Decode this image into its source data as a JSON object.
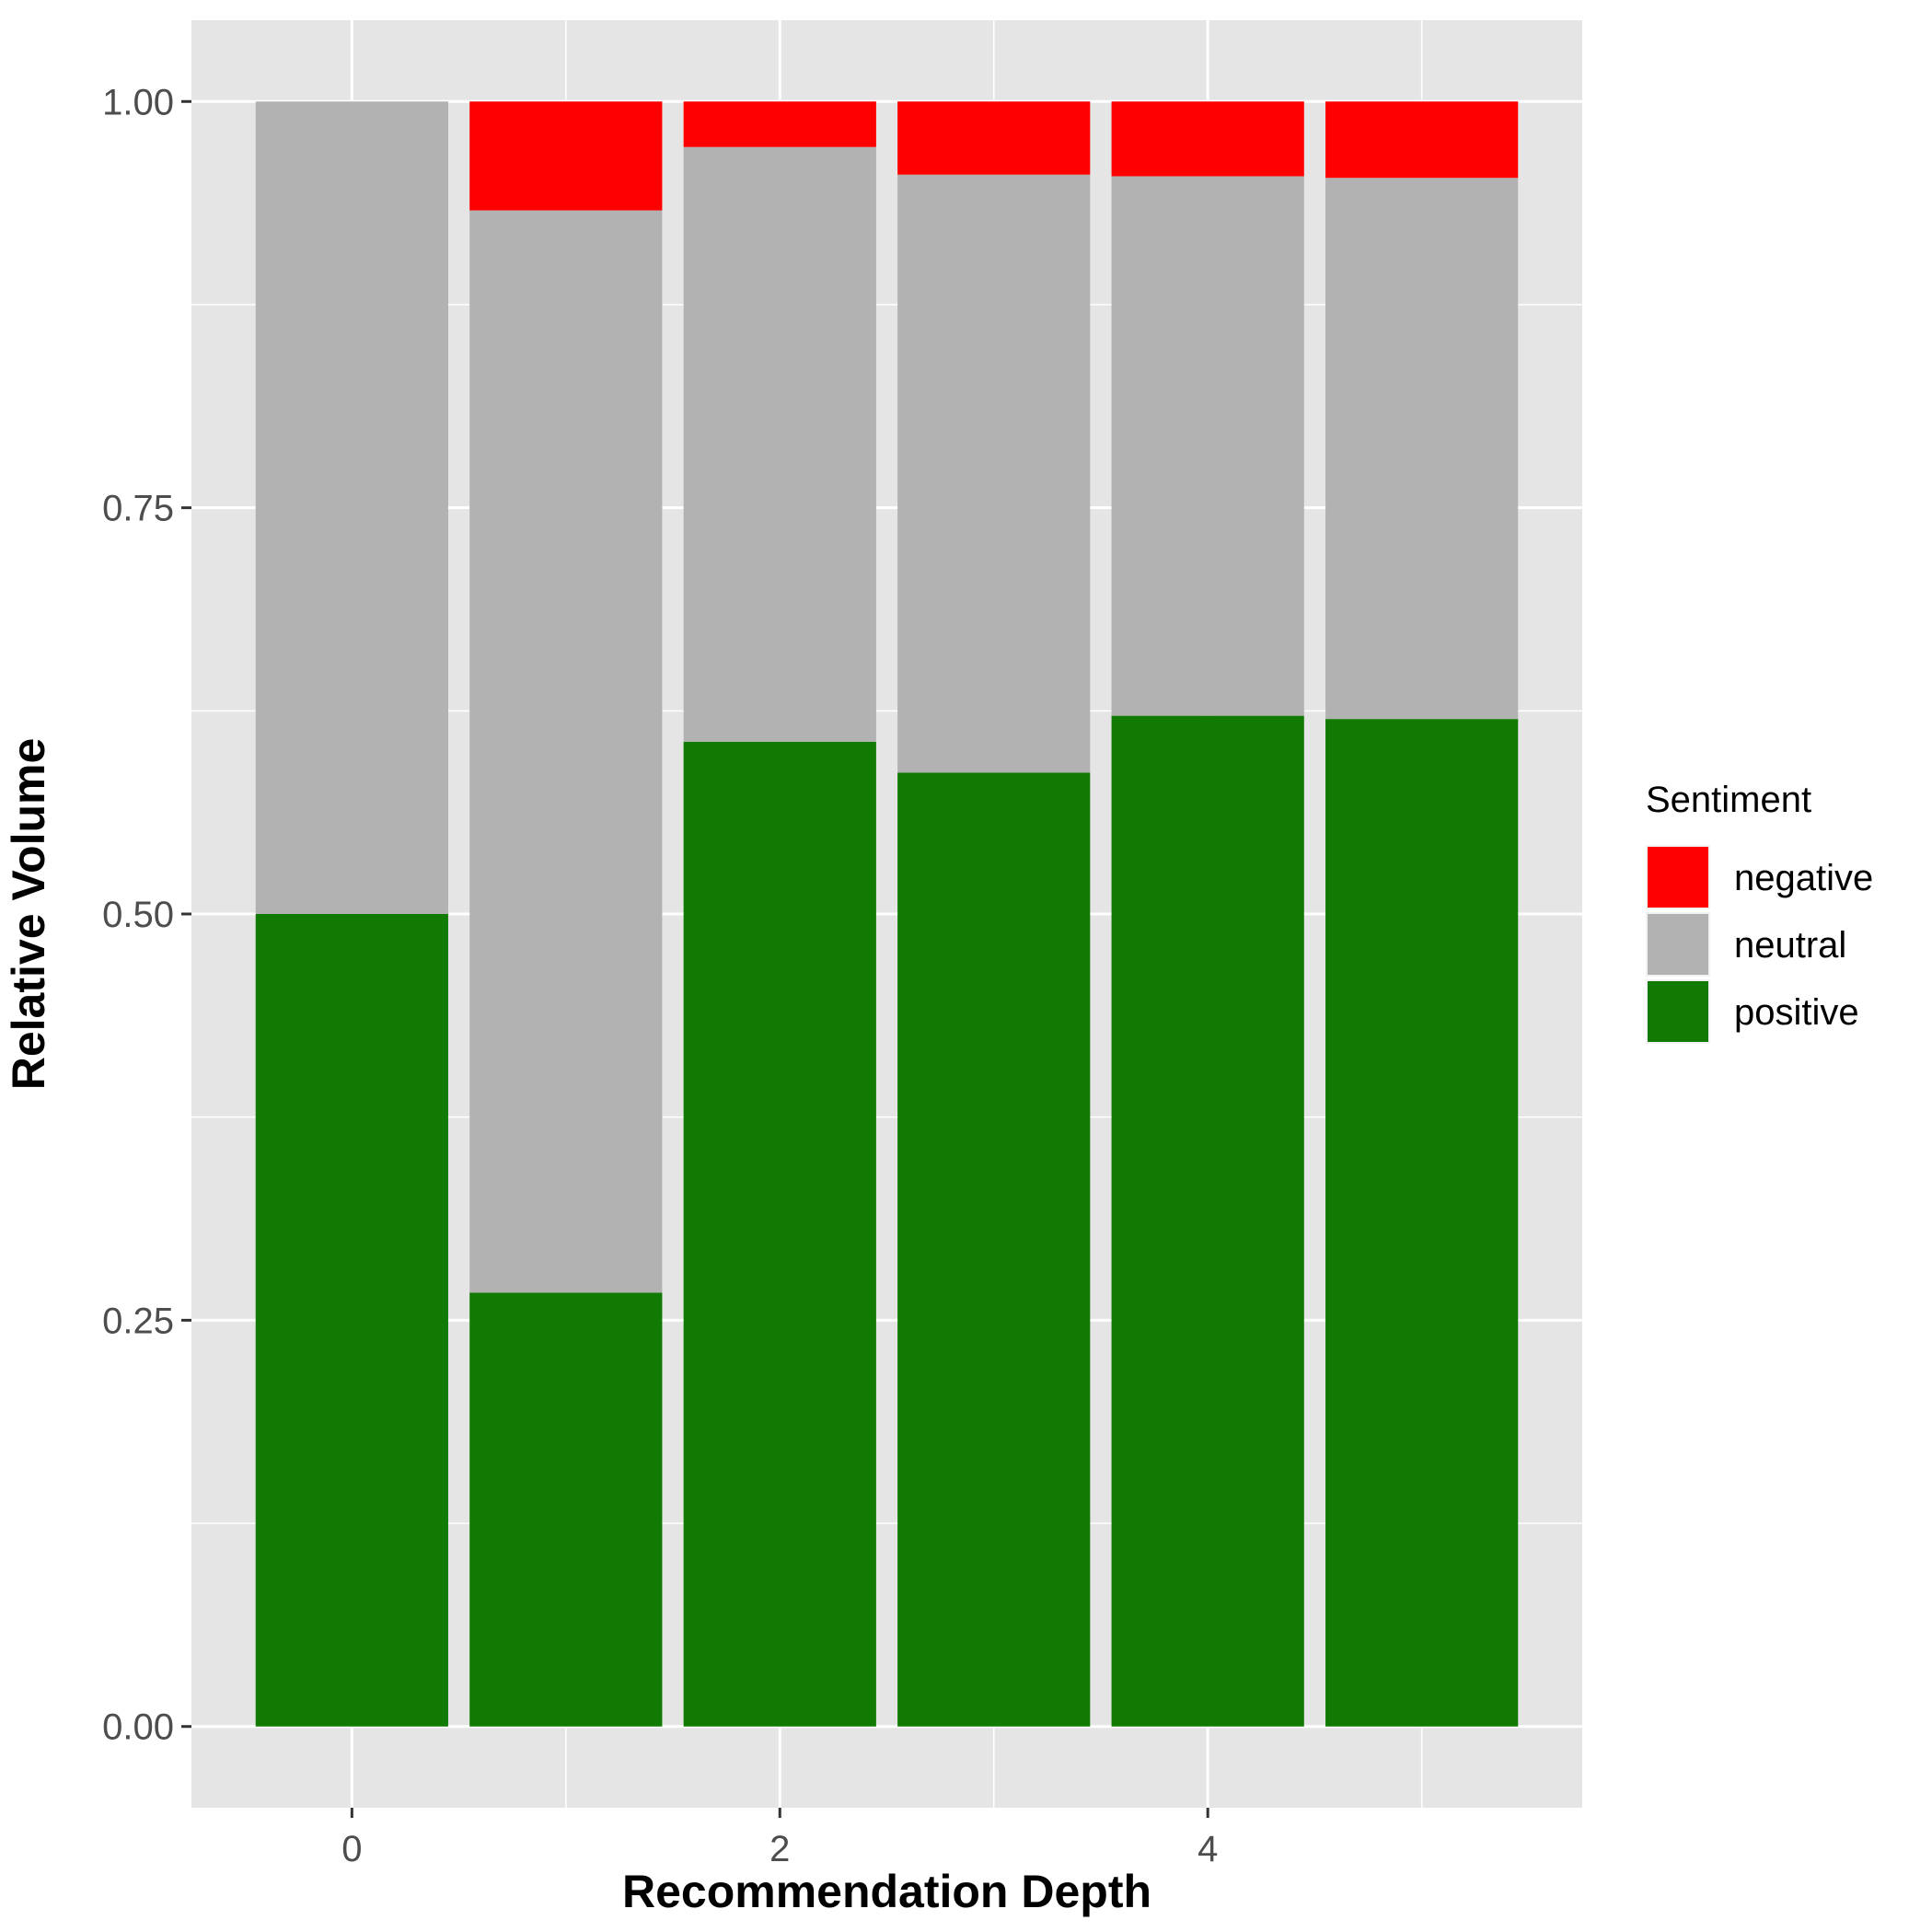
{
  "chart_data": {
    "type": "bar",
    "stacked": true,
    "xlabel": "Recommendation Depth",
    "ylabel": "Relative Volume",
    "categories": [
      0,
      1,
      2,
      3,
      4,
      5
    ],
    "x_ticks": [
      0,
      2,
      4
    ],
    "x_tick_labels": [
      "0",
      "2",
      "4"
    ],
    "xlim": [
      -0.75,
      5.75
    ],
    "y_ticks": [
      0,
      0.25,
      0.5,
      0.75,
      1.0
    ],
    "y_tick_labels": [
      "0.00",
      "0.25",
      "0.50",
      "0.75",
      "1.00"
    ],
    "ylim": [
      -0.05,
      1.05
    ],
    "grid": true,
    "legend": {
      "title": "Sentiment",
      "placement": "right",
      "entries": [
        "negative",
        "neutral",
        "positive"
      ]
    },
    "series": [
      {
        "name": "positive",
        "color": "#117a02",
        "values": [
          0.5,
          0.267,
          0.606,
          0.587,
          0.622,
          0.62
        ]
      },
      {
        "name": "neutral",
        "color": "#b2b2b2",
        "values": [
          0.5,
          0.666,
          0.366,
          0.368,
          0.332,
          0.333
        ]
      },
      {
        "name": "negative",
        "color": "#ff0000",
        "values": [
          0.0,
          0.067,
          0.028,
          0.045,
          0.046,
          0.047
        ]
      }
    ]
  }
}
